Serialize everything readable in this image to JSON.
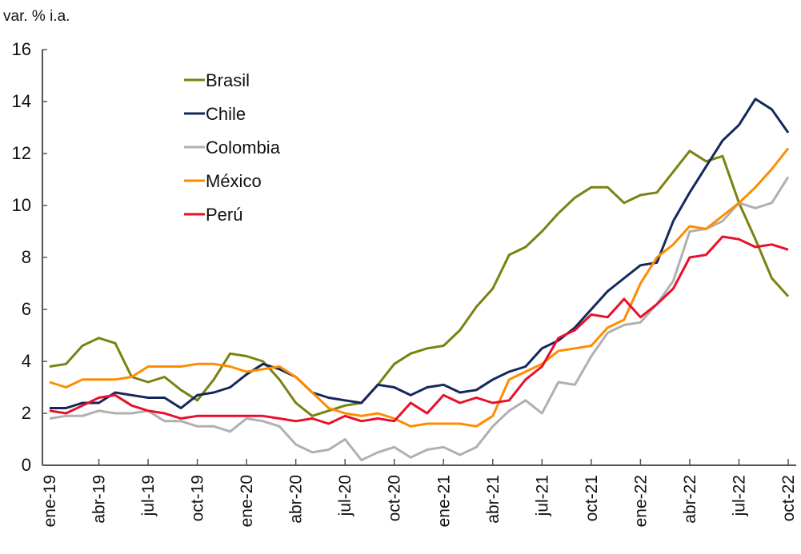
{
  "chart_data": {
    "type": "line",
    "title": "",
    "ylabel": "var. % i.a.",
    "xlabel": "",
    "ylim": [
      0,
      16
    ],
    "yticks": [
      0,
      2,
      4,
      6,
      8,
      10,
      12,
      14,
      16
    ],
    "grid": false,
    "legend_position": "top-left-inside",
    "x": [
      "ene-19",
      "feb-19",
      "mar-19",
      "abr-19",
      "may-19",
      "jun-19",
      "jul-19",
      "ago-19",
      "sep-19",
      "oct-19",
      "nov-19",
      "dic-19",
      "ene-20",
      "feb-20",
      "mar-20",
      "abr-20",
      "may-20",
      "jun-20",
      "jul-20",
      "ago-20",
      "sep-20",
      "oct-20",
      "nov-20",
      "dic-20",
      "ene-21",
      "feb-21",
      "mar-21",
      "abr-21",
      "may-21",
      "jun-21",
      "jul-21",
      "ago-21",
      "sep-21",
      "oct-21",
      "nov-21",
      "dic-21",
      "ene-22",
      "feb-22",
      "mar-22",
      "abr-22",
      "may-22",
      "jun-22",
      "jul-22",
      "ago-22",
      "sep-22",
      "oct-22"
    ],
    "xtick_labels": [
      "ene-19",
      "abr-19",
      "jul-19",
      "oct-19",
      "ene-20",
      "abr-20",
      "jul-20",
      "oct-20",
      "ene-21",
      "abr-21",
      "jul-21",
      "oct-21",
      "ene-22",
      "abr-22",
      "jul-22",
      "oct-22"
    ],
    "series": [
      {
        "name": "Brasil",
        "color": "#7a8211",
        "values": [
          3.8,
          3.9,
          4.6,
          4.9,
          4.7,
          3.4,
          3.2,
          3.4,
          2.9,
          2.5,
          3.3,
          4.3,
          4.2,
          4.0,
          3.3,
          2.4,
          1.9,
          2.1,
          2.3,
          2.4,
          3.1,
          3.9,
          4.3,
          4.5,
          4.6,
          5.2,
          6.1,
          6.8,
          8.1,
          8.4,
          9.0,
          9.7,
          10.3,
          10.7,
          10.7,
          10.1,
          10.4,
          10.5,
          11.3,
          12.1,
          11.7,
          11.9,
          10.1,
          8.7,
          7.2,
          6.5
        ]
      },
      {
        "name": "Chile",
        "color": "#14285c",
        "values": [
          2.2,
          2.2,
          2.4,
          2.4,
          2.8,
          2.7,
          2.6,
          2.6,
          2.2,
          2.7,
          2.8,
          3.0,
          3.5,
          3.9,
          3.7,
          3.4,
          2.8,
          2.6,
          2.5,
          2.4,
          3.1,
          3.0,
          2.7,
          3.0,
          3.1,
          2.8,
          2.9,
          3.3,
          3.6,
          3.8,
          4.5,
          4.8,
          5.3,
          6.0,
          6.7,
          7.2,
          7.7,
          7.8,
          9.4,
          10.5,
          11.5,
          12.5,
          13.1,
          14.1,
          13.7,
          12.8
        ]
      },
      {
        "name": "Colombia",
        "color": "#b0b0b0",
        "values": [
          1.8,
          1.9,
          1.9,
          2.1,
          2.0,
          2.0,
          2.1,
          1.7,
          1.7,
          1.5,
          1.5,
          1.3,
          1.8,
          1.7,
          1.5,
          0.8,
          0.5,
          0.6,
          1.0,
          0.2,
          0.5,
          0.7,
          0.3,
          0.6,
          0.7,
          0.4,
          0.7,
          1.5,
          2.1,
          2.5,
          2.0,
          3.2,
          3.1,
          4.2,
          5.1,
          5.4,
          5.5,
          6.2,
          7.1,
          9.0,
          9.1,
          9.4,
          10.1,
          9.9,
          10.1,
          11.1
        ]
      },
      {
        "name": "México",
        "color": "#ff8c00",
        "values": [
          3.2,
          3.0,
          3.3,
          3.3,
          3.3,
          3.4,
          3.8,
          3.8,
          3.8,
          3.9,
          3.9,
          3.8,
          3.6,
          3.7,
          3.8,
          3.4,
          2.8,
          2.2,
          2.0,
          1.9,
          2.0,
          1.8,
          1.5,
          1.6,
          1.6,
          1.6,
          1.5,
          1.9,
          3.3,
          3.6,
          3.9,
          4.4,
          4.5,
          4.6,
          5.3,
          5.6,
          7.0,
          8.0,
          8.5,
          9.2,
          9.1,
          9.6,
          10.1,
          10.7,
          11.4,
          12.2
        ]
      },
      {
        "name": "Perú",
        "color": "#e8102a",
        "values": [
          2.1,
          2.0,
          2.3,
          2.6,
          2.7,
          2.3,
          2.1,
          2.0,
          1.8,
          1.9,
          1.9,
          1.9,
          1.9,
          1.9,
          1.8,
          1.7,
          1.8,
          1.6,
          1.9,
          1.7,
          1.8,
          1.7,
          2.4,
          2.0,
          2.7,
          2.4,
          2.6,
          2.4,
          2.5,
          3.3,
          3.8,
          4.9,
          5.2,
          5.8,
          5.7,
          6.4,
          5.7,
          6.2,
          6.8,
          8.0,
          8.1,
          8.8,
          8.7,
          8.4,
          8.5,
          8.3
        ]
      }
    ]
  }
}
